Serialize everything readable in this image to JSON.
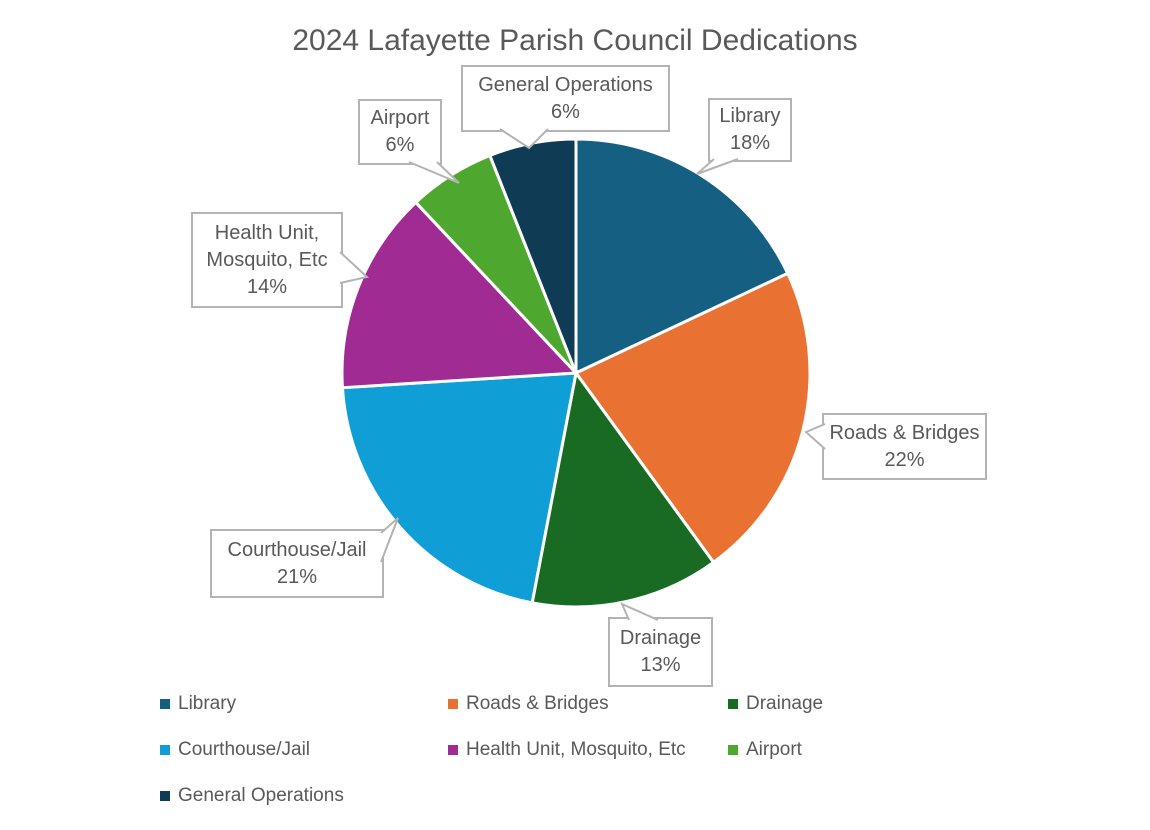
{
  "title": "2024 Lafayette Parish Council Dedications",
  "chart_data": {
    "type": "pie",
    "title": "2024 Lafayette Parish Council Dedications",
    "categories": [
      "Library",
      "Roads & Bridges",
      "Drainage",
      "Courthouse/Jail",
      "Health Unit, Mosquito, Etc",
      "Airport",
      "General Operations"
    ],
    "values": [
      18,
      22,
      13,
      21,
      14,
      6,
      6
    ],
    "unit": "%",
    "colors": [
      "#156082",
      "#E97132",
      "#196B24",
      "#0F9ED5",
      "#A02B93",
      "#4EA72E",
      "#0F3C54"
    ],
    "start_angle_deg": 0,
    "direction": "clockwise",
    "slice_border_color": "#FFFFFF",
    "legend_position": "bottom",
    "data_labels": "category and percent shown in gray callout boxes with leader pointers"
  },
  "callouts": [
    {
      "id": "library",
      "lines": [
        "Library",
        "18%"
      ]
    },
    {
      "id": "roads-bridges",
      "lines": [
        "Roads & Bridges",
        "22%"
      ]
    },
    {
      "id": "drainage",
      "lines": [
        "Drainage",
        "13%"
      ]
    },
    {
      "id": "courthouse-jail",
      "lines": [
        "Courthouse/Jail",
        "21%"
      ]
    },
    {
      "id": "health-unit",
      "lines": [
        "Health Unit,",
        "Mosquito, Etc",
        "14%"
      ]
    },
    {
      "id": "airport",
      "lines": [
        "Airport",
        "6%"
      ]
    },
    {
      "id": "general-operations",
      "lines": [
        "General Operations",
        "6%"
      ]
    }
  ],
  "legend": {
    "items": [
      {
        "label": "Library",
        "color": "#156082"
      },
      {
        "label": "Roads & Bridges",
        "color": "#E97132"
      },
      {
        "label": "Drainage",
        "color": "#196B24"
      },
      {
        "label": "Courthouse/Jail",
        "color": "#0F9ED5"
      },
      {
        "label": "Health Unit, Mosquito, Etc",
        "color": "#A02B93"
      },
      {
        "label": "Airport",
        "color": "#4EA72E"
      },
      {
        "label": "General Operations",
        "color": "#0F3C54"
      }
    ]
  }
}
